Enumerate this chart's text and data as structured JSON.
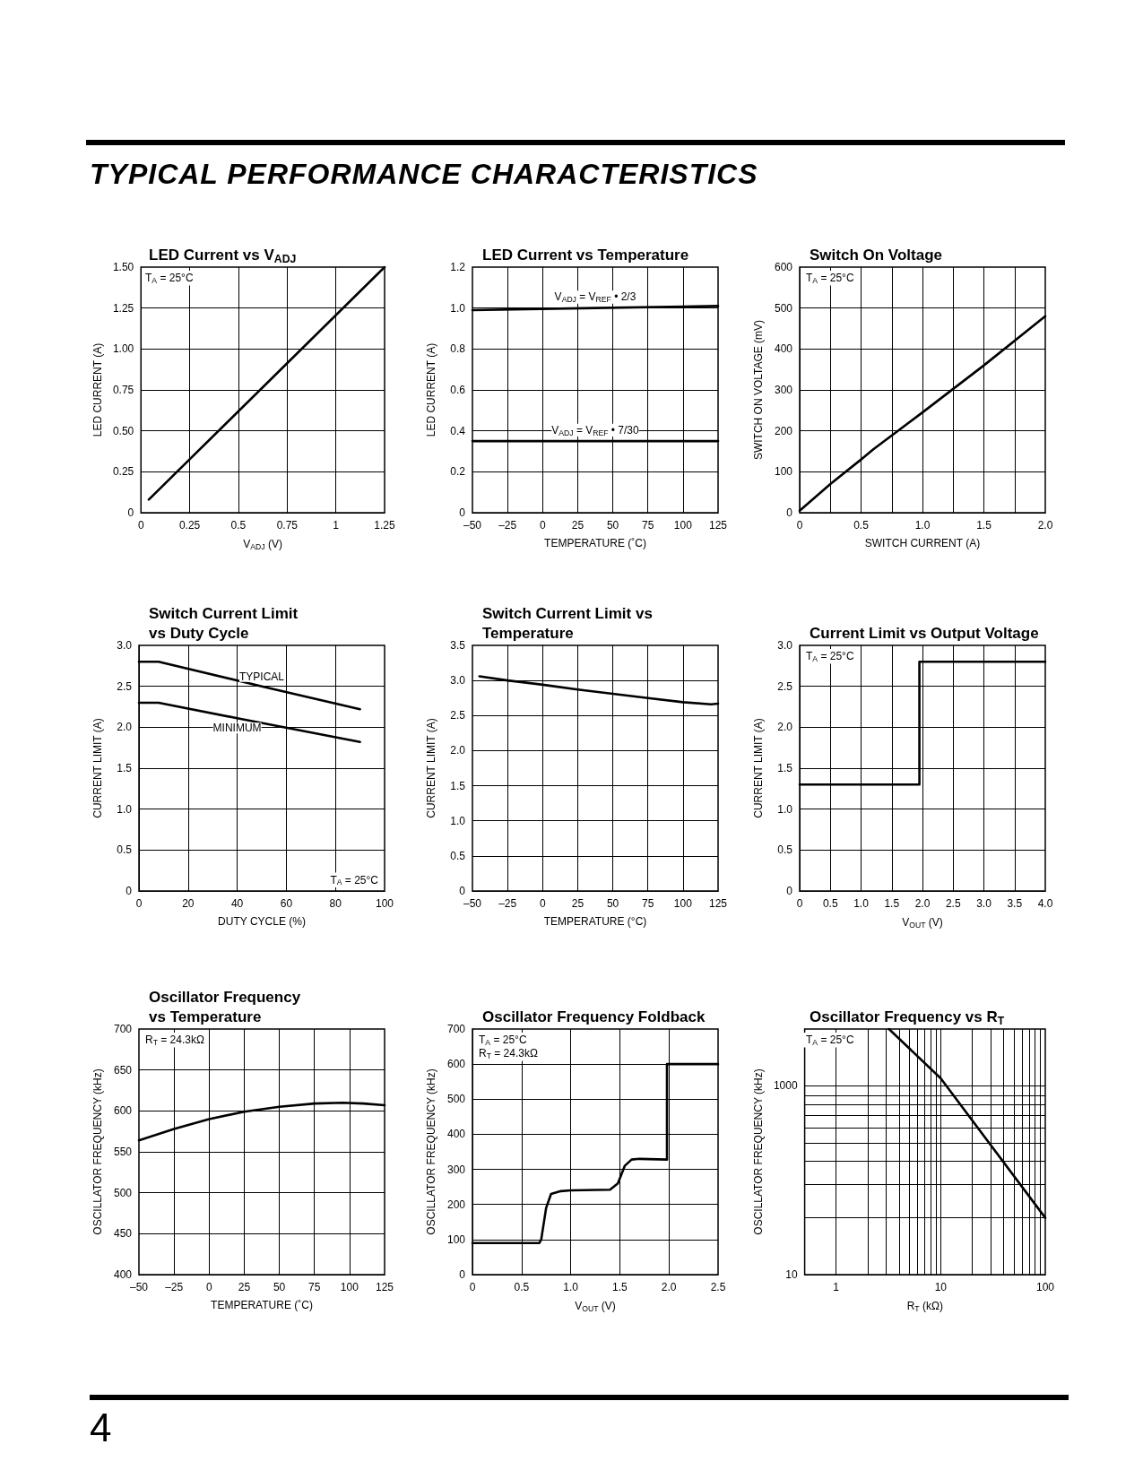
{
  "chart_data": [
    {
      "type": "line",
      "title": "LED Current vs V$_{ADJ}$",
      "xlabel": "V$_{ADJ}$ (V)",
      "ylabel": "LED CURRENT (A)",
      "annotations": [
        "TYPICAL PERFORMANCE CHARACTERISTICS",
        "T$_{A}$ = 25°C"
      ],
      "series": [
        {
          "color": "#000000",
          "x": [
            0.04,
            1.25
          ],
          "values": [
            0.08,
            1.5
          ]
        }
      ],
      "xlim": [
        0,
        1.25
      ],
      "xticks": [
        0,
        0.25,
        0.5,
        0.75,
        1,
        1.25
      ],
      "ylim": [
        0,
        1.5
      ],
      "yticks": [
        0,
        0.25,
        {
          "value": 0.5,
          "label": "0.50"
        },
        0.75,
        {
          "value": 1,
          "label": "1.00"
        },
        1.25,
        {
          "value": 1.5,
          "label": "1.50"
        }
      ],
      "grid": true,
      "legend": false,
      "marker": "none"
    },
    {
      "type": "line",
      "title": "LED Current vs Temperature",
      "xlabel": "TEMPERATURE (˚C)",
      "ylabel": "LED CURRENT (A)",
      "series": [
        {
          "name": "V$_{ADJ}$ = V$_{REF}$ • 2/3",
          "color": "#000000",
          "x": [
            -50,
            37.5,
            125
          ],
          "values": [
            0.99,
            1.0,
            1.01
          ]
        },
        {
          "name": "V$_{ADJ}$ = V$_{REF}$ • 7/30",
          "color": "#000000",
          "x": [
            -50,
            37.5,
            125
          ],
          "values": [
            0.35,
            0.35,
            0.35
          ]
        }
      ],
      "xlim": [
        -50,
        125
      ],
      "xticks": [
        {
          "value": -50,
          "label": "–50"
        },
        {
          "value": -25,
          "label": "–25"
        },
        0,
        25,
        50,
        75,
        100,
        125
      ],
      "ylim": [
        0,
        1.2
      ],
      "yticks": [
        0,
        0.2,
        0.4,
        0.6,
        0.8,
        {
          "value": 1,
          "label": "1.0"
        },
        1.2
      ],
      "grid": true,
      "legend": false,
      "marker": "none"
    },
    {
      "type": "line",
      "title": "Switch On Voltage",
      "xlabel": "SWITCH CURRENT (A)",
      "ylabel": "SWITCH ON VOLTAGE (mV)",
      "annotations": [
        "T$_{A}$ = 25°C"
      ],
      "series": [
        {
          "color": "#000000",
          "x": [
            0,
            0.25,
            0.5,
            0.6,
            1.0,
            1.5,
            2.0
          ],
          "values": [
            5,
            70,
            130,
            155,
            245,
            360,
            480
          ]
        }
      ],
      "xlim": [
        0,
        2
      ],
      "xticks": [
        0,
        {
          "value": 0.25,
          "label": null
        },
        0.5,
        {
          "value": 0.75,
          "label": null
        },
        {
          "value": 1,
          "label": "1.0"
        },
        {
          "value": 1.25,
          "label": null
        },
        1.5,
        {
          "value": 1.75,
          "label": null
        },
        {
          "value": 2,
          "label": "2.0"
        }
      ],
      "ylim": [
        0,
        600
      ],
      "yticks": [
        0,
        100,
        200,
        300,
        400,
        500,
        600
      ],
      "grid": true,
      "legend": false,
      "marker": "none"
    },
    {
      "type": "line",
      "title": "Switch Current Limit\nvs Duty Cycle",
      "xlabel": "DUTY CYCLE (%)",
      "ylabel": "CURRENT LIMIT (A)",
      "annotations": [
        "T$_{A}$ = 25°C"
      ],
      "series": [
        {
          "name": "TYPICAL",
          "color": "#000000",
          "x": [
            0,
            8,
            50,
            90
          ],
          "values": [
            2.8,
            2.8,
            2.5,
            2.22
          ]
        },
        {
          "name": "MINIMUM",
          "color": "#000000",
          "x": [
            0,
            8,
            40,
            90
          ],
          "values": [
            2.3,
            2.3,
            2.11,
            1.82
          ]
        }
      ],
      "xlim": [
        0,
        100
      ],
      "xticks": [
        0,
        20,
        40,
        60,
        80,
        100
      ],
      "ylim": [
        0,
        3
      ],
      "yticks": [
        0,
        0.5,
        {
          "value": 1,
          "label": "1.0"
        },
        1.5,
        {
          "value": 2,
          "label": "2.0"
        },
        2.5,
        {
          "value": 3,
          "label": "3.0"
        }
      ],
      "grid": true,
      "legend": false,
      "marker": "none"
    },
    {
      "type": "line",
      "title": "Switch Current Limit vs\nTemperature",
      "xlabel": "TEMPERATURE (°C)",
      "ylabel": "CURRENT LIMIT (A)",
      "series": [
        {
          "color": "#000000",
          "x": [
            -45,
            -25,
            0,
            25,
            50,
            75,
            100,
            120,
            125
          ],
          "values": [
            3.06,
            3.0,
            2.94,
            2.87,
            2.81,
            2.75,
            2.69,
            2.66,
            2.67
          ]
        }
      ],
      "xlim": [
        -50,
        125
      ],
      "xticks": [
        {
          "value": -50,
          "label": "–50"
        },
        {
          "value": -25,
          "label": "–25"
        },
        0,
        25,
        50,
        75,
        100,
        125
      ],
      "ylim": [
        0,
        3.5
      ],
      "yticks": [
        0,
        0.5,
        {
          "value": 1,
          "label": "1.0"
        },
        1.5,
        {
          "value": 2,
          "label": "2.0"
        },
        2.5,
        {
          "value": 3,
          "label": "3.0"
        },
        3.5
      ],
      "grid": true,
      "legend": false,
      "marker": "none"
    },
    {
      "type": "step",
      "title": "Current Limit vs Output Voltage",
      "xlabel": "V$_{OUT}$ (V)",
      "ylabel": "CURRENT LIMIT (A)",
      "annotations": [
        "T$_{A}$ = 25°C"
      ],
      "series": [
        {
          "color": "#000000",
          "x": [
            0,
            1.95,
            4
          ],
          "values": [
            1.3,
            2.8,
            2.8
          ]
        }
      ],
      "xlim": [
        0,
        4
      ],
      "xticks": [
        0,
        0.5,
        {
          "value": 1,
          "label": "1.0"
        },
        1.5,
        {
          "value": 2,
          "label": "2.0"
        },
        2.5,
        {
          "value": 3,
          "label": "3.0"
        },
        3.5,
        {
          "value": 4,
          "label": "4.0"
        }
      ],
      "ylim": [
        0,
        3
      ],
      "yticks": [
        0,
        0.5,
        {
          "value": 1,
          "label": "1.0"
        },
        1.5,
        {
          "value": 2,
          "label": "2.0"
        },
        2.5,
        {
          "value": 3,
          "label": "3.0"
        }
      ],
      "grid": true,
      "legend": false,
      "marker": "none"
    },
    {
      "type": "line",
      "title": "Oscillator Frequency\nvs Temperature",
      "xlabel": "TEMPERATURE (˚C)",
      "ylabel": "OSCILLATOR FREQUENCY (kHz)",
      "annotations": [
        "R$_{T}$ = 24.3kΩ"
      ],
      "series": [
        {
          "color": "#000000",
          "x": [
            -50,
            -25,
            0,
            25,
            50,
            75,
            95,
            110,
            125
          ],
          "values": [
            564,
            578,
            590,
            599,
            605,
            609,
            610,
            609,
            607
          ]
        }
      ],
      "xlim": [
        -50,
        125
      ],
      "xticks": [
        {
          "value": -50,
          "label": "–50"
        },
        {
          "value": -25,
          "label": "–25"
        },
        0,
        25,
        50,
        75,
        100,
        125
      ],
      "ylim": [
        400,
        700
      ],
      "yticks": [
        400,
        450,
        500,
        550,
        600,
        650,
        700
      ],
      "grid": true,
      "legend": false,
      "marker": "none"
    },
    {
      "type": "line",
      "title": "Oscillator Frequency Foldback",
      "xlabel": "V$_{OUT}$ (V)",
      "ylabel": "OSCILLATOR FREQUENCY (kHz)",
      "annotations": [
        "T$_{A}$ = 25°C",
        "R$_{T}$ = 24.3kΩ"
      ],
      "series": [
        {
          "color": "#000000",
          "x": [
            0,
            0.68,
            0.7,
            0.75,
            0.8,
            0.9,
            1.0,
            1.4,
            1.48,
            1.55,
            1.62,
            1.7,
            1.98,
            1.98,
            2.5
          ],
          "values": [
            90,
            90,
            100,
            190,
            230,
            238,
            240,
            242,
            260,
            310,
            328,
            330,
            328,
            600,
            600
          ]
        }
      ],
      "xlim": [
        0,
        2.5
      ],
      "xticks": [
        0,
        0.5,
        {
          "value": 1,
          "label": "1.0"
        },
        1.5,
        {
          "value": 2,
          "label": "2.0"
        },
        2.5
      ],
      "ylim": [
        0,
        700
      ],
      "yticks": [
        0,
        100,
        200,
        300,
        400,
        500,
        600,
        700
      ],
      "grid": true,
      "legend": false,
      "marker": "none"
    },
    {
      "type": "line",
      "title": "Oscillator Frequency vs R$_{T}$",
      "xlabel": "R$_{T}$ (kΩ)",
      "ylabel": "OSCILLATOR FREQUENCY (kHz)",
      "annotations": [
        "T$_{A}$ = 25°C",
        "4"
      ],
      "series": [
        {
          "color": "#000000",
          "x": [
            3.2,
            10,
            100
          ],
          "values": [
            4000,
            1200,
            40
          ]
        }
      ],
      "xlim": [
        0.5,
        100
      ],
      "xticks": [
        1,
        {
          "value": 2,
          "label": null
        },
        {
          "value": 3,
          "label": null
        },
        {
          "value": 4,
          "label": null
        },
        {
          "value": 5,
          "label": null
        },
        {
          "value": 6,
          "label": null
        },
        {
          "value": 7,
          "label": null
        },
        {
          "value": 8,
          "label": null
        },
        {
          "value": 9,
          "label": null
        },
        10,
        {
          "value": 20,
          "label": null
        },
        {
          "value": 30,
          "label": null
        },
        {
          "value": 40,
          "label": null
        },
        {
          "value": 50,
          "label": null
        },
        {
          "value": 60,
          "label": null
        },
        {
          "value": 70,
          "label": null
        },
        {
          "value": 80,
          "label": null
        },
        {
          "value": 90,
          "label": null
        },
        100
      ],
      "ylim": [
        10,
        4000
      ],
      "yticks": [
        10,
        {
          "value": 40,
          "label": null
        },
        {
          "value": 90,
          "label": null
        },
        {
          "value": 160,
          "label": null
        },
        {
          "value": 250,
          "label": null
        },
        {
          "value": 360,
          "label": null
        },
        {
          "value": 490,
          "label": null
        },
        {
          "value": 640,
          "label": null
        },
        {
          "value": 790,
          "label": null
        },
        1000
      ],
      "log": "xy",
      "grid": true,
      "legend": false,
      "marker": "none"
    }
  ]
}
